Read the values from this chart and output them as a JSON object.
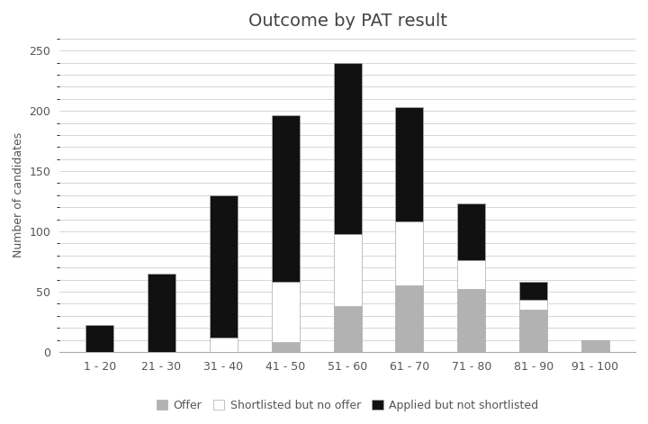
{
  "categories": [
    "1 - 20",
    "21 - 30",
    "31 - 40",
    "41 - 50",
    "51 - 60",
    "61 - 70",
    "71 - 80",
    "81 - 90",
    "91 - 100"
  ],
  "offer": [
    0,
    0,
    0,
    8,
    38,
    55,
    52,
    35,
    10
  ],
  "shortlisted": [
    0,
    0,
    12,
    50,
    60,
    53,
    24,
    8,
    0
  ],
  "applied": [
    22,
    65,
    118,
    138,
    142,
    95,
    47,
    15,
    0
  ],
  "title": "Outcome by PAT result",
  "ylabel": "Number of candidates",
  "color_offer": "#b2b2b2",
  "color_shortlisted": "#ffffff",
  "color_applied": "#111111",
  "ylim": [
    0,
    260
  ],
  "yticks": [
    0,
    50,
    100,
    150,
    200,
    250
  ],
  "legend_labels": [
    "Offer",
    "Shortlisted but no offer",
    "Applied but not shortlisted"
  ],
  "background_color": "#ffffff",
  "grid_color": "#d0d0d0",
  "bar_width": 0.45,
  "title_fontsize": 14,
  "axis_fontsize": 9,
  "legend_fontsize": 9
}
